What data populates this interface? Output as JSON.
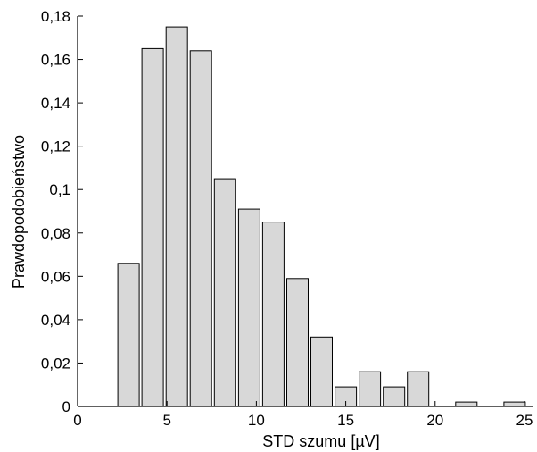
{
  "chart_data": {
    "type": "bar",
    "title": "",
    "xlabel": "STD szumu [µV]",
    "ylabel": "Prawdopodobieństwo",
    "xlim": [
      0,
      25.5
    ],
    "ylim": [
      0,
      0.18
    ],
    "grid": false,
    "bar_width": 1.2,
    "x_ticks": [
      {
        "value": 0,
        "label": "0"
      },
      {
        "value": 5,
        "label": "5"
      },
      {
        "value": 10,
        "label": "10"
      },
      {
        "value": 15,
        "label": "15"
      },
      {
        "value": 20,
        "label": "20"
      },
      {
        "value": 25,
        "label": "25"
      }
    ],
    "y_ticks": [
      {
        "value": 0,
        "label": "0"
      },
      {
        "value": 0.02,
        "label": "0,02"
      },
      {
        "value": 0.04,
        "label": "0,04"
      },
      {
        "value": 0.06,
        "label": "0,06"
      },
      {
        "value": 0.08,
        "label": "0,08"
      },
      {
        "value": 0.1,
        "label": "0,1"
      },
      {
        "value": 0.12,
        "label": "0,12"
      },
      {
        "value": 0.14,
        "label": "0,14"
      },
      {
        "value": 0.16,
        "label": "0,16"
      },
      {
        "value": 0.18,
        "label": "0,18"
      }
    ],
    "bins": [
      2.85,
      4.2,
      5.55,
      6.9,
      8.25,
      9.6,
      10.95,
      12.3,
      13.65,
      15.0,
      16.35,
      17.7,
      19.05,
      20.4,
      21.75,
      23.1,
      24.45
    ],
    "values": [
      0.066,
      0.165,
      0.175,
      0.164,
      0.105,
      0.091,
      0.085,
      0.059,
      0.032,
      0.009,
      0.016,
      0.009,
      0.016,
      0,
      0.002,
      0,
      0.002
    ]
  }
}
